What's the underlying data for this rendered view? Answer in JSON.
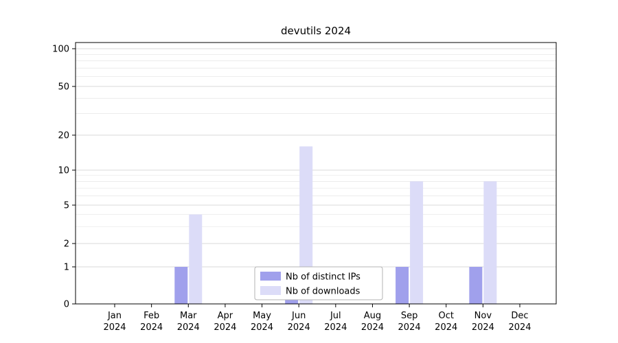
{
  "chart_data": {
    "type": "bar",
    "title": "devutils 2024",
    "categories": [
      "Jan 2024",
      "Feb 2024",
      "Mar 2024",
      "Apr 2024",
      "May 2024",
      "Jun 2024",
      "Jul 2024",
      "Aug 2024",
      "Sep 2024",
      "Oct 2024",
      "Nov 2024",
      "Dec 2024"
    ],
    "series": [
      {
        "name": "Nb of distinct IPs",
        "color": "#a0a0ec",
        "values": [
          0,
          0,
          1,
          0,
          0,
          1,
          0,
          0,
          1,
          0,
          1,
          0
        ]
      },
      {
        "name": "Nb of downloads",
        "color": "#dcdcf8",
        "values": [
          0,
          0,
          4,
          0,
          0,
          16,
          0,
          0,
          8,
          0,
          8,
          0
        ]
      }
    ],
    "yscale": "symlog",
    "yticks": [
      0,
      1,
      2,
      5,
      10,
      20,
      50,
      100
    ],
    "ylim": [
      0,
      110
    ],
    "grid": "horizontal",
    "legend": {
      "position": "lower center",
      "entries": [
        "Nb of distinct IPs",
        "Nb of downloads"
      ]
    }
  }
}
